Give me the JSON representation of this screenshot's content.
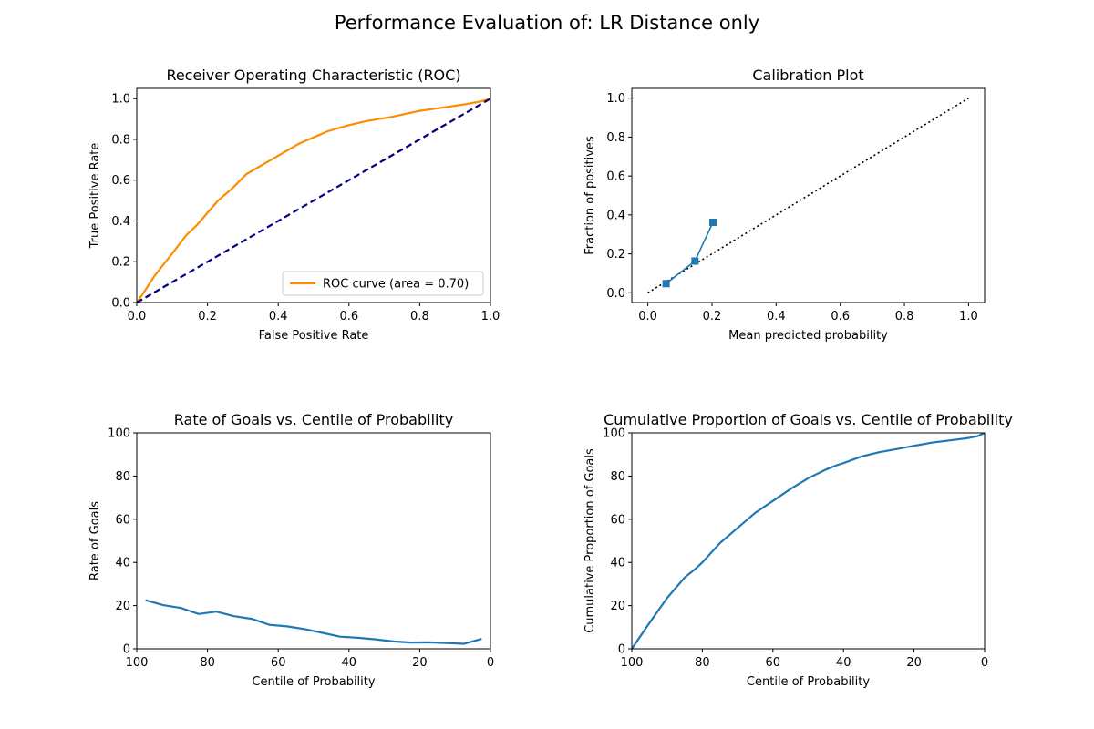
{
  "figure": {
    "suptitle": "Performance Evaluation of: LR Distance only"
  },
  "chart_data": [
    {
      "id": "roc",
      "type": "line",
      "title": "Receiver Operating Characteristic (ROC)",
      "xlabel": "False Positive Rate",
      "ylabel": "True Positive Rate",
      "xlim": [
        0,
        1.0
      ],
      "ylim": [
        0,
        1.05
      ],
      "xticks": [
        0.0,
        0.2,
        0.4,
        0.6,
        0.8,
        1.0
      ],
      "yticks": [
        0.0,
        0.2,
        0.4,
        0.6,
        0.8,
        1.0
      ],
      "tick_decimals": 1,
      "legend": {
        "placement": "lower-right"
      },
      "series": [
        {
          "name": "ROC curve (area = 0.70)",
          "color": "#ff8c00",
          "style": "solid",
          "x": [
            0.0,
            0.02,
            0.05,
            0.1,
            0.14,
            0.17,
            0.2,
            0.23,
            0.27,
            0.31,
            0.36,
            0.41,
            0.46,
            0.5,
            0.54,
            0.6,
            0.65,
            0.72,
            0.8,
            0.86,
            0.92,
            0.97,
            1.0
          ],
          "y": [
            0.0,
            0.05,
            0.13,
            0.24,
            0.33,
            0.38,
            0.44,
            0.5,
            0.56,
            0.63,
            0.68,
            0.73,
            0.78,
            0.81,
            0.84,
            0.87,
            0.89,
            0.91,
            0.94,
            0.955,
            0.97,
            0.985,
            1.0
          ]
        },
        {
          "name": "",
          "color": "#000080",
          "style": "dashed",
          "x": [
            0,
            1
          ],
          "y": [
            0,
            1
          ]
        }
      ]
    },
    {
      "id": "calibration",
      "type": "line",
      "title": "Calibration Plot",
      "xlabel": "Mean predicted probability",
      "ylabel": "Fraction of positives",
      "xlim": [
        -0.05,
        1.05
      ],
      "ylim": [
        -0.05,
        1.05
      ],
      "xticks": [
        0.0,
        0.2,
        0.4,
        0.6,
        0.8,
        1.0
      ],
      "yticks": [
        0.0,
        0.2,
        0.4,
        0.6,
        0.8,
        1.0
      ],
      "tick_decimals": 1,
      "series": [
        {
          "name": "",
          "color": "#000000",
          "style": "dotted",
          "x": [
            0,
            1
          ],
          "y": [
            0,
            1
          ]
        },
        {
          "name": "",
          "color": "#1f77b4",
          "style": "solid",
          "marker": "square",
          "x": [
            0.057,
            0.147,
            0.203
          ],
          "y": [
            0.047,
            0.163,
            0.362
          ]
        }
      ]
    },
    {
      "id": "rate",
      "type": "line",
      "title": "Rate of Goals vs. Centile of Probability",
      "xlabel": "Centile of Probability",
      "ylabel": "Rate of Goals",
      "xlim": [
        100,
        0
      ],
      "ylim": [
        0,
        100
      ],
      "xticks": [
        100,
        80,
        60,
        40,
        20,
        0
      ],
      "yticks": [
        0,
        20,
        40,
        60,
        80,
        100
      ],
      "tick_decimals": 0,
      "series": [
        {
          "name": "",
          "color": "#1f77b4",
          "style": "solid",
          "x": [
            97.5,
            92.5,
            87.5,
            82.5,
            77.5,
            72.5,
            67.5,
            62.5,
            57.5,
            52.5,
            47.5,
            42.5,
            37.5,
            32.5,
            27.5,
            22.5,
            17.5,
            12.5,
            7.5,
            2.5
          ],
          "y": [
            22.5,
            20.2,
            18.9,
            16.1,
            17.2,
            15.1,
            13.9,
            11.1,
            10.4,
            9.1,
            7.4,
            5.6,
            5.1,
            4.4,
            3.4,
            2.9,
            3.0,
            2.7,
            2.3,
            4.6
          ]
        }
      ]
    },
    {
      "id": "cumulative",
      "type": "line",
      "title": "Cumulative Proportion of Goals vs. Centile of Probability",
      "xlabel": "Centile of Probability",
      "ylabel": "Cumulative Proportion of Goals",
      "xlim": [
        100,
        0
      ],
      "ylim": [
        0,
        100
      ],
      "xticks": [
        100,
        80,
        60,
        40,
        20,
        0
      ],
      "yticks": [
        0,
        20,
        40,
        60,
        80,
        100
      ],
      "tick_decimals": 0,
      "series": [
        {
          "name": "",
          "color": "#1f77b4",
          "style": "solid",
          "x": [
            100,
            95,
            90,
            85,
            82,
            80,
            75,
            70,
            65,
            60,
            55,
            50,
            45,
            42,
            40,
            35,
            30,
            25,
            20,
            15,
            10,
            5,
            2,
            0
          ],
          "y": [
            0,
            12,
            23.5,
            33,
            37,
            40,
            49,
            56,
            63,
            68.5,
            74,
            79,
            83,
            85,
            86,
            89,
            91,
            92.5,
            94,
            95.5,
            96.5,
            97.5,
            98.5,
            100
          ]
        }
      ]
    }
  ]
}
